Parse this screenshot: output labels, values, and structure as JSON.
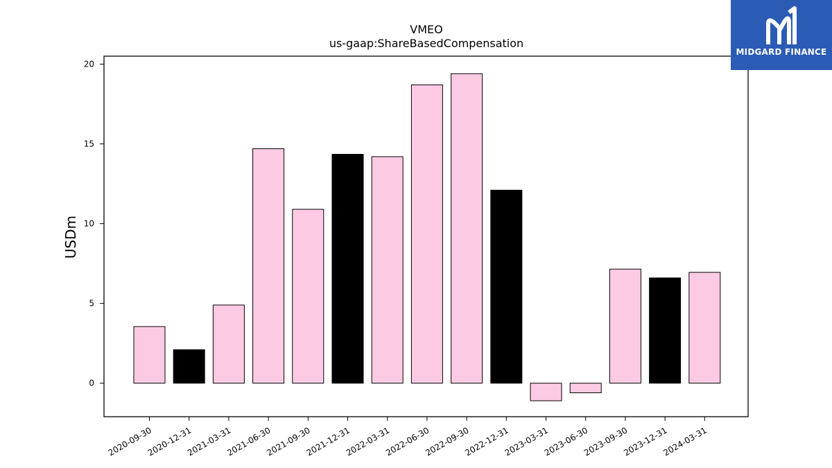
{
  "colors": {
    "bar_primary": "#fccbe3",
    "bar_highlight": "#000000",
    "logo_background": "#2b5bb5"
  },
  "logo": {
    "text": "MIDGARD FINANCE",
    "icon": "midgard-logo-icon"
  },
  "chart_data": {
    "type": "bar",
    "title": "VMEO",
    "subtitle": "us-gaap:ShareBasedCompensation",
    "xlabel": "",
    "ylabel": "USDm",
    "ylim": [
      -2.1,
      20.5
    ],
    "yticks": [
      0,
      5,
      10,
      15,
      20
    ],
    "grid": false,
    "categories": [
      "2020-09-30",
      "2020-12-31",
      "2021-03-31",
      "2021-06-30",
      "2021-09-30",
      "2021-12-31",
      "2022-03-31",
      "2022-06-30",
      "2022-09-30",
      "2022-12-31",
      "2023-03-31",
      "2023-06-30",
      "2023-09-30",
      "2023-12-31",
      "2024-03-31"
    ],
    "values": [
      3.55,
      2.1,
      4.9,
      14.7,
      10.9,
      14.35,
      14.2,
      18.7,
      19.4,
      12.1,
      -1.1,
      -0.6,
      7.15,
      6.6,
      6.95
    ],
    "highlighted": [
      false,
      true,
      false,
      false,
      false,
      true,
      false,
      false,
      false,
      true,
      false,
      false,
      false,
      true,
      false
    ]
  }
}
